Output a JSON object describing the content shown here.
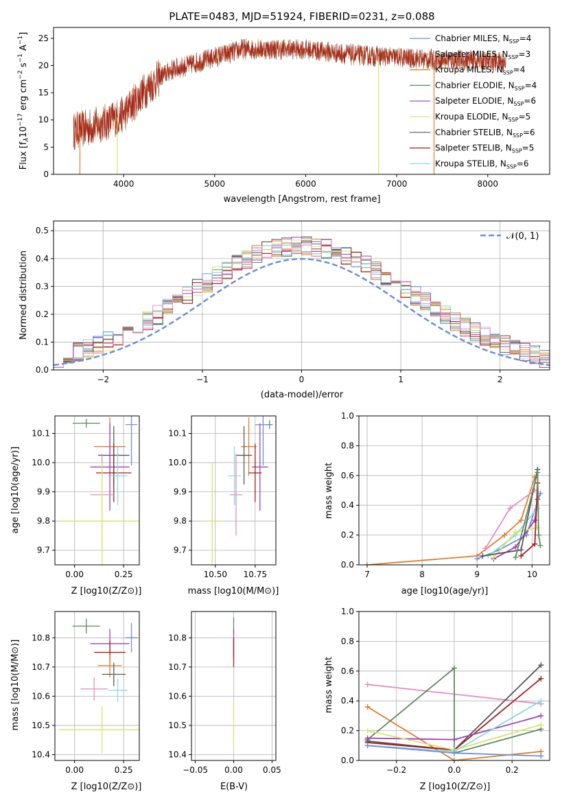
{
  "series_colors": [
    "#6b8fd6",
    "#e07b2a",
    "#c0862c",
    "#5a8a5c",
    "#9a3fbc",
    "#d8e36a",
    "#555555",
    "#a51a1a",
    "#86d7e8"
  ],
  "extra_colors": {
    "pink": "#e58cc0",
    "olive": "#b9c95c"
  },
  "texts": {
    "spectrum_title": "PLATE=0483, MJD=51924, FIBERID=0231, z=0.088",
    "spectrum_xlabel": "wavelength [Angstrom, rest frame]",
    "spectrum_ylabel": "Flux [f_λ 10^-17 erg cm^-2 s^-1 A^-1]",
    "hist_xlabel": "(data-model)/error",
    "hist_ylabel": "Normed distribution",
    "hist_legend": "𝒩(0, 1)",
    "age_ylabel": "age  [log10(age/yr)]",
    "Z_xlabel": "Z [log10(Z/Z⊙)]",
    "mass_xlabel": "mass [log10(M/M⊙)]",
    "mass_ylabel": "mass [log10(M/M⊙)]",
    "ebv_xlabel": "E(B-V)",
    "mw_ylabel": "mass weight",
    "mw_age_xlabel": "age  [log10(age/yr)]",
    "mw_Z_xlabel": "Z [log10(Z/Z⊙)]"
  },
  "chart_data": [
    {
      "type": "line",
      "title": "PLATE=0483, MJD=51924, FIBERID=0231, z=0.088",
      "xlabel": "wavelength [Angstrom, rest frame]",
      "ylabel": "Flux [fλ10^-17 erg cm^-2 s^-1 A^-1]",
      "xlim": [
        3230,
        8680
      ],
      "ylim": [
        0,
        27
      ],
      "xticks": [
        4000,
        5000,
        6000,
        7000,
        8000
      ],
      "yticks": [
        0,
        5,
        10,
        15,
        20,
        25
      ],
      "legend_position": "upper-right",
      "continuum": {
        "x": [
          3450,
          3600,
          3800,
          4000,
          4100,
          4300,
          4500,
          4800,
          5100,
          5300,
          5600,
          6000,
          6500,
          7000,
          7400,
          7800,
          8200
        ],
        "y": [
          8,
          8.5,
          9.5,
          11,
          13,
          16.5,
          19,
          20.5,
          22,
          23,
          23,
          23,
          22,
          21.5,
          21,
          21,
          20.5
        ]
      },
      "spikes_down": [
        3520,
        3930,
        6800,
        7410
      ],
      "series": [
        {
          "name": "Chabrier MILES, N_SSP=4"
        },
        {
          "name": "Salpeter MILES, N_SSP=3"
        },
        {
          "name": "Kroupa MILES, N_SSP=4"
        },
        {
          "name": "Chabrier ELODIE, N_SSP=4"
        },
        {
          "name": "Salpeter ELODIE, N_SSP=6"
        },
        {
          "name": "Kroupa ELODIE, N_SSP=5"
        },
        {
          "name": "Chabrier STELIB, N_SSP=6"
        },
        {
          "name": "Salpeter STELIB, N_SSP=5"
        },
        {
          "name": "Kroupa STELIB, N_SSP=6"
        }
      ]
    },
    {
      "type": "histogram",
      "xlabel": "(data-model)/error",
      "ylabel": "Normed distribution",
      "xlim": [
        -2.5,
        2.5
      ],
      "ylim": [
        0,
        0.535
      ],
      "xticks": [
        -2,
        -1,
        0,
        1,
        2
      ],
      "yticks": [
        0.0,
        0.1,
        0.2,
        0.3,
        0.4,
        0.5
      ],
      "grid": true,
      "bin_width": 0.1,
      "bin_start": -2.5,
      "reference_curve": "N(0,1)",
      "legend_position": "upper-right"
    },
    {
      "type": "scatter",
      "xlabel": "Z [log10(Z/Z⊙)]",
      "ylabel": "age  [log10(age/yr)]",
      "xlim": [
        -0.1,
        0.33
      ],
      "ylim": [
        9.65,
        10.16
      ],
      "xticks": [
        0.0,
        0.25
      ],
      "yticks": [
        9.7,
        9.8,
        9.9,
        10.0,
        10.1
      ],
      "grid": true,
      "points": [
        {
          "x": 0.06,
          "y": 10.135,
          "xerr": 0.07,
          "yerr": 0.015,
          "c": "#5a8a5c"
        },
        {
          "x": 0.29,
          "y": 10.13,
          "xerr": 0.03,
          "yerr": 0.14,
          "c": "#6b8fd6"
        },
        {
          "x": 0.18,
          "y": 10.055,
          "xerr": 0.08,
          "yerr": 0.1,
          "c": "#e07b2a"
        },
        {
          "x": 0.2,
          "y": 10.025,
          "xerr": 0.08,
          "yerr": 0.1,
          "c": "#555555"
        },
        {
          "x": 0.18,
          "y": 9.985,
          "xerr": 0.1,
          "yerr": 0.15,
          "c": "#9a3fbc"
        },
        {
          "x": 0.2,
          "y": 9.965,
          "xerr": 0.09,
          "yerr": 0.1,
          "c": "#a51a1a"
        },
        {
          "x": 0.22,
          "y": 9.955,
          "xerr": 0.05,
          "yerr": 0.1,
          "c": "#86d7e8"
        },
        {
          "x": 0.14,
          "y": 9.89,
          "xerr": 0.06,
          "yerr": 0.14,
          "c": "#e58cc0"
        },
        {
          "x": 0.14,
          "y": 9.8,
          "xerr": 0.22,
          "yerr": 0.11,
          "c": "#d8e36a"
        },
        {
          "x": 0.14,
          "y": 9.8,
          "xerr": 0.0,
          "yerr": 0.2,
          "c": "#d8e36a"
        }
      ]
    },
    {
      "type": "scatter",
      "xlabel": "mass [log10(M/M⊙)]",
      "xlim": [
        10.35,
        10.88
      ],
      "ylim": [
        9.65,
        10.16
      ],
      "xticks": [
        10.5,
        10.75
      ],
      "yticks": [
        9.7,
        9.8,
        9.9,
        10.0,
        10.1
      ],
      "grid": true,
      "points": [
        {
          "x": 10.84,
          "y": 10.13,
          "xerr": 0.02,
          "yerr": 0.015,
          "c": "#5a8a5c"
        },
        {
          "x": 10.8,
          "y": 10.13,
          "xerr": 0.05,
          "yerr": 0.14,
          "c": "#6b8fd6"
        },
        {
          "x": 10.71,
          "y": 10.055,
          "xerr": 0.05,
          "yerr": 0.1,
          "c": "#e07b2a"
        },
        {
          "x": 10.68,
          "y": 10.025,
          "xerr": 0.05,
          "yerr": 0.1,
          "c": "#555555"
        },
        {
          "x": 10.78,
          "y": 9.985,
          "xerr": 0.05,
          "yerr": 0.15,
          "c": "#9a3fbc"
        },
        {
          "x": 10.75,
          "y": 9.965,
          "xerr": 0.04,
          "yerr": 0.1,
          "c": "#a51a1a"
        },
        {
          "x": 10.62,
          "y": 9.955,
          "xerr": 0.04,
          "yerr": 0.1,
          "c": "#86d7e8"
        },
        {
          "x": 10.63,
          "y": 9.89,
          "xerr": 0.04,
          "yerr": 0.14,
          "c": "#e58cc0"
        },
        {
          "x": 10.48,
          "y": 9.8,
          "xerr": 0.05,
          "yerr": 0.2,
          "c": "#d8e36a"
        }
      ]
    },
    {
      "type": "line",
      "xlabel": "age  [log10(age/yr)]",
      "ylabel": "mass weight",
      "xlim": [
        6.85,
        10.32
      ],
      "ylim": [
        0,
        1.0
      ],
      "xticks": [
        7,
        8,
        9,
        10
      ],
      "yticks": [
        0.0,
        0.2,
        0.4,
        0.6,
        0.8,
        1.0
      ],
      "grid": true,
      "series": [
        {
          "c": "#e07b2a",
          "points": [
            [
              7.0,
              0.0
            ],
            [
              9.0,
              0.06
            ],
            [
              9.5,
              0.2
            ],
            [
              9.8,
              0.3
            ],
            [
              10.05,
              0.59
            ]
          ]
        },
        {
          "c": "#e58cc0",
          "points": [
            [
              9.15,
              0.11
            ],
            [
              9.6,
              0.38
            ],
            [
              10.05,
              0.5
            ]
          ]
        },
        {
          "c": "#6b8fd6",
          "points": [
            [
              9.0,
              0.04
            ],
            [
              9.4,
              0.1
            ],
            [
              9.9,
              0.2
            ],
            [
              10.15,
              0.48
            ]
          ]
        },
        {
          "c": "#9a3fbc",
          "points": [
            [
              9.3,
              0.04
            ],
            [
              9.7,
              0.12
            ],
            [
              10.05,
              0.3
            ],
            [
              10.1,
              0.44
            ]
          ]
        },
        {
          "c": "#86d7e8",
          "points": [
            [
              9.2,
              0.06
            ],
            [
              9.7,
              0.2
            ],
            [
              10.1,
              0.38
            ]
          ]
        },
        {
          "c": "#d8e36a",
          "points": [
            [
              9.3,
              0.05
            ],
            [
              9.7,
              0.22
            ],
            [
              10.1,
              0.25
            ]
          ]
        },
        {
          "c": "#555555",
          "points": [
            [
              9.1,
              0.06
            ],
            [
              9.8,
              0.1
            ],
            [
              10.1,
              0.64
            ]
          ]
        },
        {
          "c": "#a51a1a",
          "points": [
            [
              9.8,
              0.06
            ],
            [
              10.05,
              0.14
            ],
            [
              10.1,
              0.55
            ]
          ]
        },
        {
          "c": "#5a8a5c",
          "points": [
            [
              9.7,
              0.05
            ],
            [
              10.1,
              0.62
            ],
            [
              10.12,
              0.2
            ],
            [
              10.15,
              0.13
            ]
          ]
        }
      ]
    },
    {
      "type": "scatter",
      "xlabel": "Z [log10(Z/Z⊙)]",
      "ylabel": "mass [log10(M/M⊙)]",
      "xlim": [
        -0.1,
        0.33
      ],
      "ylim": [
        10.38,
        10.89
      ],
      "xticks": [
        0.0,
        0.25
      ],
      "yticks": [
        10.4,
        10.5,
        10.6,
        10.7,
        10.8
      ],
      "grid": true,
      "points": [
        {
          "x": 0.06,
          "y": 10.84,
          "xerr": 0.07,
          "yerr": 0.025,
          "c": "#5a8a5c"
        },
        {
          "x": 0.29,
          "y": 10.8,
          "xerr": 0.03,
          "yerr": 0.05,
          "c": "#6b8fd6"
        },
        {
          "x": 0.18,
          "y": 10.78,
          "xerr": 0.1,
          "yerr": 0.05,
          "c": "#9a3fbc"
        },
        {
          "x": 0.18,
          "y": 10.75,
          "xerr": 0.08,
          "yerr": 0.04,
          "c": "#a51a1a"
        },
        {
          "x": 0.18,
          "y": 10.705,
          "xerr": 0.06,
          "yerr": 0.04,
          "c": "#e07b2a"
        },
        {
          "x": 0.2,
          "y": 10.675,
          "xerr": 0.06,
          "yerr": 0.04,
          "c": "#555555"
        },
        {
          "x": 0.1,
          "y": 10.625,
          "xerr": 0.07,
          "yerr": 0.04,
          "c": "#e58cc0"
        },
        {
          "x": 0.22,
          "y": 10.62,
          "xerr": 0.05,
          "yerr": 0.04,
          "c": "#86d7e8"
        },
        {
          "x": 0.14,
          "y": 10.485,
          "xerr": 0.22,
          "yerr": 0.08,
          "c": "#d8e36a"
        }
      ]
    },
    {
      "type": "scatter",
      "xlabel": "E(B-V)",
      "xlim": [
        -0.055,
        0.055
      ],
      "ylim": [
        10.38,
        10.89
      ],
      "xticks": [
        -0.05,
        0.0,
        0.05
      ],
      "yticks": [
        10.4,
        10.5,
        10.6,
        10.7,
        10.8
      ],
      "grid": true,
      "points": [
        {
          "x": 0.0,
          "y": 10.84,
          "xerr": 0.0,
          "yerr": 0.03,
          "c": "#5a8a5c"
        },
        {
          "x": 0.0,
          "y": 10.78,
          "xerr": 0.0,
          "yerr": 0.05,
          "c": "#9a3fbc"
        },
        {
          "x": 0.0,
          "y": 10.75,
          "xerr": 0.0,
          "yerr": 0.05,
          "c": "#a51a1a"
        },
        {
          "x": 0.0,
          "y": 10.5,
          "xerr": 0.0,
          "yerr": 0.08,
          "c": "#d8e36a"
        }
      ]
    },
    {
      "type": "line",
      "xlabel": "Z [log10(Z/Z⊙)]",
      "ylabel": "mass weight",
      "xlim": [
        -0.33,
        0.33
      ],
      "ylim": [
        0,
        1.0
      ],
      "xticks": [
        -0.2,
        0.0,
        0.2
      ],
      "yticks": [
        0.0,
        0.2,
        0.4,
        0.6,
        0.8,
        1.0
      ],
      "grid": true,
      "series": [
        {
          "c": "#e58cc0",
          "points": [
            [
              -0.3,
              0.51
            ],
            [
              0.3,
              0.38
            ]
          ]
        },
        {
          "c": "#e07b2a",
          "points": [
            [
              -0.3,
              0.36
            ],
            [
              0.0,
              0.0
            ],
            [
              0.3,
              0.06
            ]
          ]
        },
        {
          "c": "#5a8a5c",
          "points": [
            [
              -0.3,
              0.14
            ],
            [
              0.0,
              0.62
            ],
            [
              0.0,
              0.05
            ],
            [
              0.3,
              0.21
            ]
          ]
        },
        {
          "c": "#555555",
          "points": [
            [
              -0.3,
              0.13
            ],
            [
              0.0,
              0.07
            ],
            [
              0.3,
              0.64
            ]
          ]
        },
        {
          "c": "#a51a1a",
          "points": [
            [
              -0.3,
              0.12
            ],
            [
              0.0,
              0.07
            ],
            [
              0.3,
              0.55
            ]
          ]
        },
        {
          "c": "#9a3fbc",
          "points": [
            [
              -0.3,
              0.15
            ],
            [
              0.0,
              0.14
            ],
            [
              0.3,
              0.3
            ]
          ]
        },
        {
          "c": "#d8e36a",
          "points": [
            [
              -0.3,
              0.2
            ],
            [
              0.0,
              0.07
            ],
            [
              0.3,
              0.24
            ]
          ]
        },
        {
          "c": "#86d7e8",
          "points": [
            [
              -0.3,
              0.1
            ],
            [
              0.0,
              0.06
            ],
            [
              0.3,
              0.4
            ]
          ]
        },
        {
          "c": "#6b8fd6",
          "points": [
            [
              -0.3,
              0.1
            ],
            [
              0.0,
              0.05
            ],
            [
              0.3,
              0.03
            ]
          ]
        }
      ]
    }
  ]
}
